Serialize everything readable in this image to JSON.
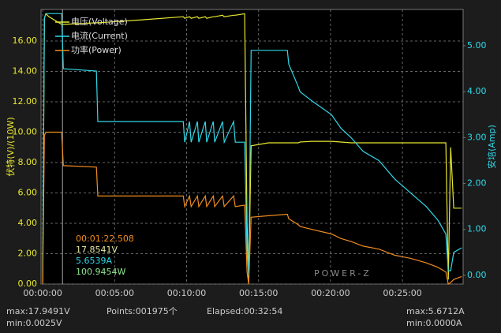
{
  "chart_data": {
    "type": "line",
    "y_label": "伏特(V)/(10W)",
    "y2_label": "安培(Amp)",
    "x": [
      0,
      7,
      13,
      26,
      79,
      86,
      224,
      230,
      415,
      586,
      592,
      612,
      619,
      645,
      651,
      678,
      684,
      711,
      717,
      750,
      757,
      796,
      803,
      842,
      852,
      859,
      869,
      941,
      1020,
      1026,
      1066,
      1073,
      1122,
      1204,
      1244,
      1286,
      1336,
      1402,
      1467,
      1533,
      1599,
      1648,
      1681,
      1691,
      1701,
      1714,
      1747
    ],
    "series": [
      {
        "name": "电压(Voltage)",
        "color": "#e8e830",
        "values": [
          0.1,
          17.5,
          17.8,
          17.6,
          17.1,
          17.1,
          17.2,
          17.2,
          17.4,
          17.6,
          17.5,
          17.6,
          17.5,
          17.6,
          17.5,
          17.6,
          17.5,
          17.6,
          17.6,
          17.7,
          17.6,
          17.7,
          17.7,
          17.8,
          4.0,
          0.3,
          9.1,
          9.3,
          9.3,
          9.3,
          9.3,
          9.35,
          9.4,
          9.4,
          9.35,
          9.3,
          9.3,
          9.3,
          9.3,
          9.3,
          9.3,
          9.3,
          9.3,
          0.3,
          9.0,
          5.0,
          5.0
        ]
      },
      {
        "name": "电流(Current)",
        "color": "#30d8e8",
        "axis": "y2",
        "values": [
          0,
          5.6,
          5.7,
          5.7,
          5.7,
          4.5,
          4.45,
          3.35,
          3.35,
          3.35,
          2.9,
          3.35,
          2.9,
          3.35,
          2.9,
          3.35,
          2.9,
          3.35,
          2.9,
          3.35,
          2.9,
          3.35,
          2.9,
          2.9,
          0.5,
          0.0,
          4.9,
          4.9,
          4.9,
          4.6,
          4.1,
          4.0,
          3.8,
          3.5,
          3.2,
          3.0,
          2.7,
          2.5,
          2.1,
          1.8,
          1.5,
          1.2,
          0.9,
          0.1,
          0.1,
          0.5,
          0.6
        ]
      },
      {
        "name": "功率(Power)",
        "color": "#f08c20",
        "values": [
          0,
          9.8,
          10.0,
          10.0,
          10.0,
          7.8,
          7.7,
          5.8,
          5.8,
          5.8,
          5.1,
          5.8,
          5.1,
          5.8,
          5.1,
          5.8,
          5.1,
          5.8,
          5.1,
          5.8,
          5.1,
          5.8,
          5.1,
          5.2,
          0.8,
          0.0,
          4.4,
          4.5,
          4.6,
          4.3,
          3.9,
          3.8,
          3.6,
          3.3,
          3.0,
          2.8,
          2.5,
          2.3,
          1.9,
          1.7,
          1.4,
          1.1,
          0.8,
          0.0,
          0.1,
          0.3,
          0.5
        ]
      }
    ],
    "xlim": [
      -7,
      1753
    ],
    "xticks": [
      {
        "value": 0,
        "label": "00:00:00"
      },
      {
        "value": 300,
        "label": "00:05:00"
      },
      {
        "value": 600,
        "label": "00:10:00"
      },
      {
        "value": 900,
        "label": "00:15:00"
      },
      {
        "value": 1200,
        "label": "00:20:00"
      },
      {
        "value": 1500,
        "label": "00:25:00"
      }
    ],
    "ylim": [
      0,
      18.08
    ],
    "yticks": [
      {
        "value": 0,
        "label": "0.00"
      },
      {
        "value": 2,
        "label": "2.00"
      },
      {
        "value": 4,
        "label": "4.00"
      },
      {
        "value": 6,
        "label": "6.00"
      },
      {
        "value": 8,
        "label": "8.00"
      },
      {
        "value": 10,
        "label": "10.00"
      },
      {
        "value": 12,
        "label": "12.00"
      },
      {
        "value": 14,
        "label": "14.00"
      },
      {
        "value": 16,
        "label": "16.00"
      }
    ],
    "y2lim": [
      -0.19,
      5.79
    ],
    "y2ticks": [
      {
        "value": 0,
        "label": "0.00"
      },
      {
        "value": 1,
        "label": "1.00"
      },
      {
        "value": 2,
        "label": "2.00"
      },
      {
        "value": 3,
        "label": "3.00"
      },
      {
        "value": 4,
        "label": "4.00"
      },
      {
        "value": 5,
        "label": "5.00"
      }
    ],
    "grid": true,
    "cursor": {
      "x": 82.508,
      "label": "00:01:22.508",
      "voltage": "17.8541V",
      "current": "5.6539A",
      "power": "100.9454W"
    },
    "watermark": "POWER-Z"
  },
  "footer": {
    "v_max": "max:17.9491V",
    "v_min": "min:0.0025V",
    "points": "Points:001975个",
    "elapsed": "Elapsed:00:32:54",
    "a_max": "max:5.6712A",
    "a_min": "min:0.0000A"
  }
}
